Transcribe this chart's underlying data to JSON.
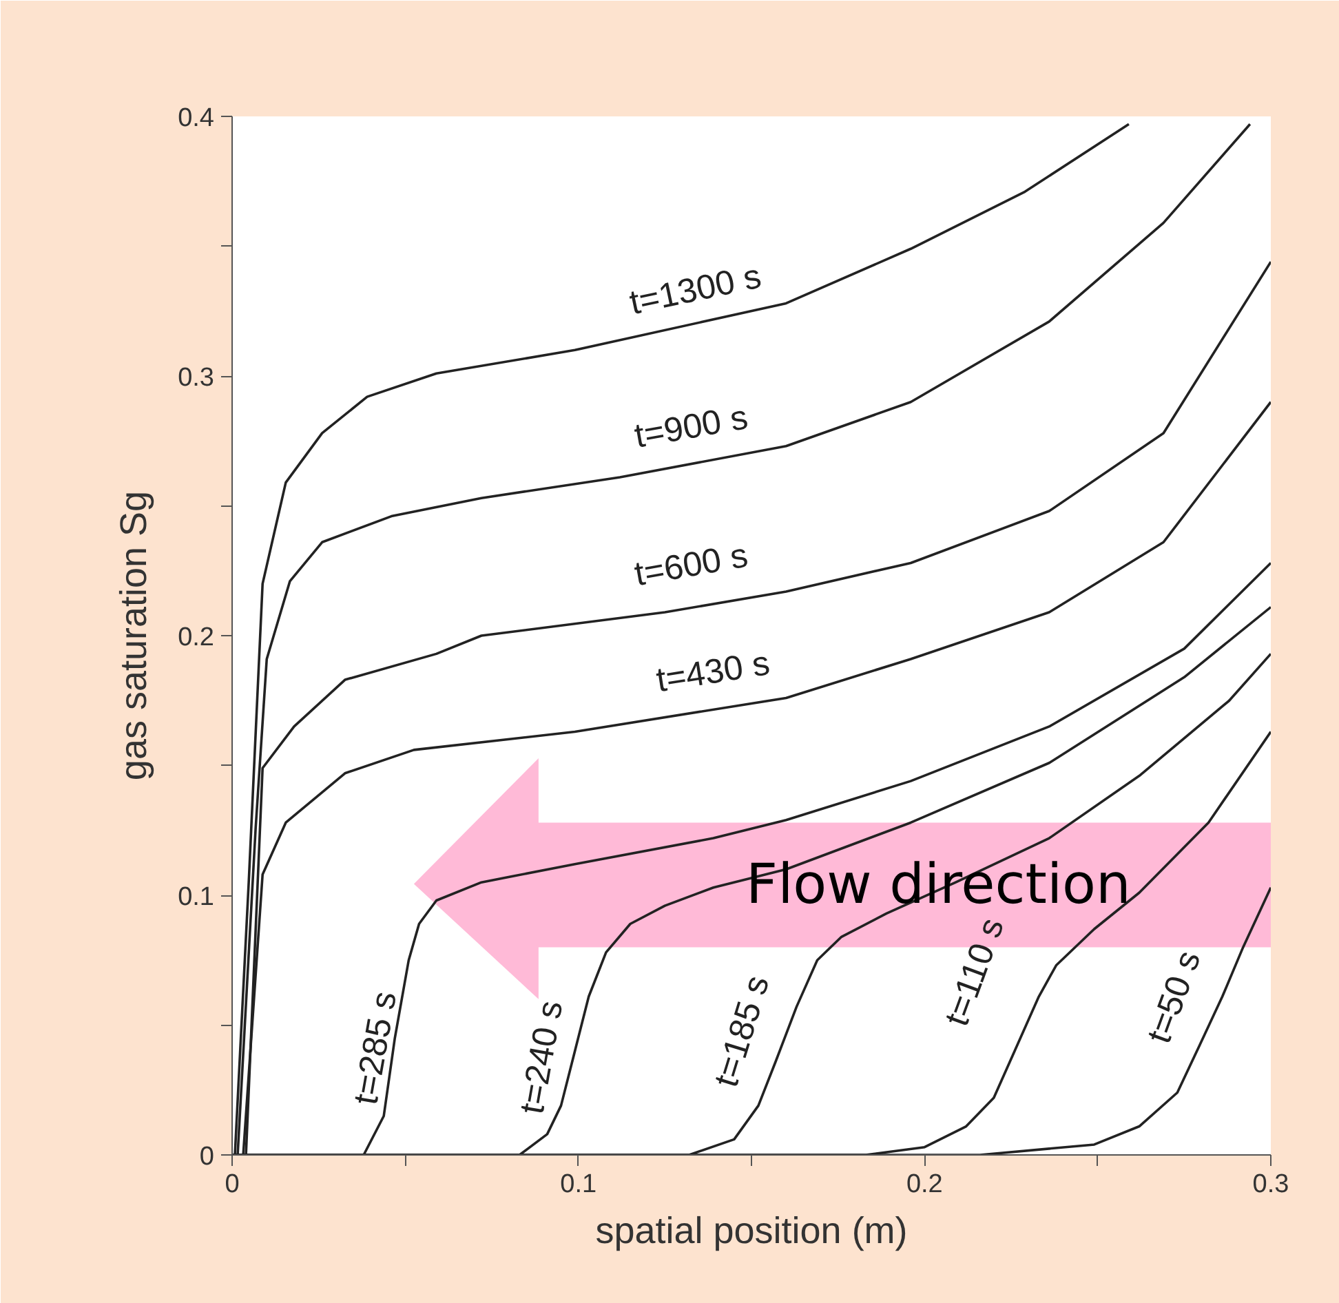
{
  "chart_data": {
    "type": "line",
    "xlabel": "spatial position (m)",
    "ylabel": "gas saturation Sg",
    "xlim": [
      0,
      0.3
    ],
    "ylim": [
      0,
      0.4
    ],
    "xticks": [
      {
        "value": 0,
        "label": "0"
      },
      {
        "value": 0.05,
        "label": null
      },
      0.1,
      {
        "value": 0.15,
        "label": null
      },
      0.2,
      {
        "value": 0.25,
        "label": null
      },
      0.3
    ],
    "yticks": [
      {
        "value": 0,
        "label": "0"
      },
      {
        "value": 0.05,
        "label": null
      },
      0.1,
      {
        "value": 0.15,
        "label": null
      },
      0.2,
      {
        "value": 0.25,
        "label": null
      },
      0.3,
      {
        "value": 0.35,
        "label": null
      },
      0.4
    ],
    "grid": false,
    "series": [
      {
        "name": "t=1300 s",
        "color": "#222222",
        "x": [
          0.0008,
          0.0048,
          0.0088,
          0.0155,
          0.026,
          0.039,
          0.059,
          0.099,
          0.16,
          0.196,
          0.229,
          0.259
        ],
        "values": [
          0,
          0.105,
          0.22,
          0.259,
          0.278,
          0.292,
          0.301,
          0.31,
          0.328,
          0.349,
          0.371,
          0.397
        ]
      },
      {
        "name": "t=900 s",
        "color": "#222222",
        "x": [
          0.0016,
          0.0068,
          0.01,
          0.0167,
          0.026,
          0.046,
          0.072,
          0.112,
          0.16,
          0.196,
          0.236,
          0.269,
          0.294
        ],
        "values": [
          0,
          0.126,
          0.191,
          0.221,
          0.236,
          0.246,
          0.253,
          0.261,
          0.273,
          0.29,
          0.321,
          0.359,
          0.397
        ]
      },
      {
        "name": "t=600 s",
        "color": "#222222",
        "x": [
          0.004,
          0.0088,
          0.0179,
          0.0326,
          0.059,
          0.072,
          0.125,
          0.16,
          0.196,
          0.236,
          0.269,
          0.3
        ],
        "values": [
          0,
          0.149,
          0.165,
          0.183,
          0.193,
          0.2,
          0.209,
          0.217,
          0.228,
          0.248,
          0.278,
          0.344
        ]
      },
      {
        "name": "t=430 s",
        "color": "#222222",
        "x": [
          0.0032,
          0.0088,
          0.0155,
          0.0326,
          0.0525,
          0.099,
          0.16,
          0.196,
          0.236,
          0.269,
          0.3
        ],
        "values": [
          0,
          0.108,
          0.128,
          0.147,
          0.156,
          0.163,
          0.176,
          0.191,
          0.209,
          0.236,
          0.29
        ]
      },
      {
        "name": "t=285 s",
        "color": "#222222",
        "x": [
          0,
          0.038,
          0.0438,
          0.047,
          0.051,
          0.054,
          0.059,
          0.072,
          0.099,
          0.139,
          0.16,
          0.196,
          0.236,
          0.275,
          0.3
        ],
        "values": [
          0,
          0,
          0.015,
          0.045,
          0.075,
          0.089,
          0.098,
          0.105,
          0.112,
          0.122,
          0.129,
          0.144,
          0.165,
          0.195,
          0.228
        ]
      },
      {
        "name": "t=240 s",
        "color": "#222222",
        "x": [
          0,
          0.083,
          0.091,
          0.095,
          0.099,
          0.103,
          0.108,
          0.115,
          0.125,
          0.139,
          0.16,
          0.196,
          0.236,
          0.275,
          0.3
        ],
        "values": [
          0,
          0,
          0.008,
          0.019,
          0.04,
          0.061,
          0.078,
          0.089,
          0.096,
          0.103,
          0.11,
          0.128,
          0.151,
          0.184,
          0.211
        ]
      },
      {
        "name": "t=185 s",
        "color": "#222222",
        "x": [
          0,
          0.132,
          0.145,
          0.152,
          0.157,
          0.163,
          0.169,
          0.176,
          0.189,
          0.209,
          0.236,
          0.262,
          0.288,
          0.3
        ],
        "values": [
          0,
          0,
          0.006,
          0.019,
          0.036,
          0.057,
          0.075,
          0.084,
          0.093,
          0.105,
          0.122,
          0.146,
          0.175,
          0.193
        ]
      },
      {
        "name": "t=110 s",
        "color": "#222222",
        "x": [
          0,
          0.183,
          0.2,
          0.212,
          0.22,
          0.226,
          0.233,
          0.238,
          0.249,
          0.262,
          0.282,
          0.3
        ],
        "values": [
          0,
          0,
          0.003,
          0.011,
          0.022,
          0.04,
          0.061,
          0.073,
          0.087,
          0.101,
          0.128,
          0.163
        ]
      },
      {
        "name": "t=50 s",
        "color": "#222222",
        "x": [
          0,
          0.216,
          0.249,
          0.262,
          0.273,
          0.279,
          0.286,
          0.292,
          0.3
        ],
        "values": [
          0,
          0,
          0.004,
          0.011,
          0.024,
          0.041,
          0.061,
          0.08,
          0.103
        ]
      }
    ],
    "annotations": [
      "Flow direction"
    ]
  }
}
